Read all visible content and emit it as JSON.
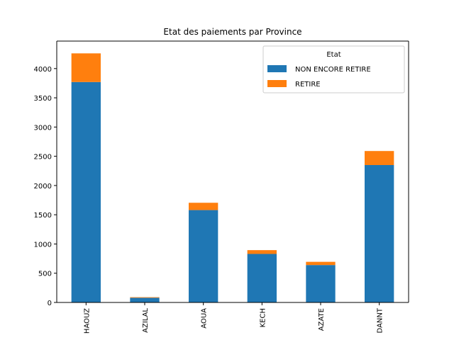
{
  "chart_data": {
    "type": "bar",
    "stacked": true,
    "title": "Etat des paiements par Province",
    "xlabel": "",
    "ylabel": "",
    "categories": [
      "HAOUZ",
      "AZILAL",
      "CHICHAOUA",
      "MARRAKECH",
      "ESSAOUIRA-KELAAZATE",
      "BENIMELLAL-BENIADANNT"
    ],
    "visible_category_labels": [
      "HAOUZ",
      "AZILAL",
      "AOUA",
      "KECH",
      "AZATE",
      "DANNT"
    ],
    "series": [
      {
        "name": "NON ENCORE RETIRE",
        "color": "#1f77b4",
        "values": [
          3770,
          80,
          1580,
          830,
          640,
          2350
        ]
      },
      {
        "name": "RETIRE",
        "color": "#ff7f0e",
        "values": [
          490,
          10,
          125,
          65,
          55,
          240
        ]
      }
    ],
    "ylim": [
      0,
      4470
    ],
    "yticks": [
      0,
      500,
      1000,
      1500,
      2000,
      2500,
      3000,
      3500,
      4000
    ],
    "grid": false,
    "legend": {
      "title": "Etat",
      "placement": "top-right"
    }
  }
}
